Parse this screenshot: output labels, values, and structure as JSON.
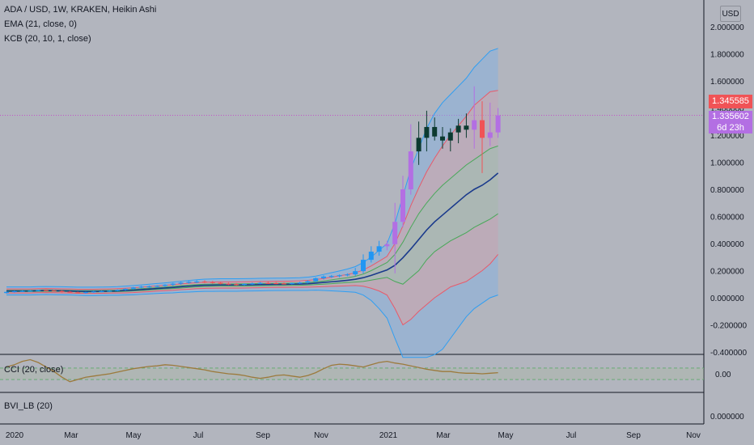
{
  "colors": {
    "background": "#b2b5be",
    "bull_candle": "#b36fe3",
    "bull_candle_early": "#2196f3",
    "bear_candle": "#0c3a30",
    "bear_candle_red": "#f05356",
    "ema_line": "#1a3a8c",
    "kc_upper_outer": "#2f9ef2",
    "kc_upper_inner": "#e85a6a",
    "kc_mid": "#4aa85a",
    "cci_line": "#9c7a3c",
    "grid": "#a4a7b0",
    "price_tag_red": "#f05356",
    "price_tag_purple": "#b36fe3"
  },
  "legend": {
    "symbol": "ADA / USD, 1W, KRAKEN, Heikin Ashi",
    "ema": "EMA (21, close, 0)",
    "kcb": "KCB (20, 10, 1, close)",
    "cci": "CCI (20, close)",
    "bvi": "BVI_LB (20)"
  },
  "currency_button": "USD",
  "price_tags": {
    "last": "1.345585",
    "close": "1.335602",
    "countdown": "6d 23h"
  },
  "chart_data": [
    {
      "type": "candlestick",
      "title": "ADA / USD, 1W, KRAKEN, Heikin Ashi",
      "yticks": [
        "2.000000",
        "1.800000",
        "1.600000",
        "1.400000",
        "1.200000",
        "1.000000",
        "0.800000",
        "0.600000",
        "0.400000",
        "0.200000",
        "0.000000",
        "-0.200000",
        "-0.400000"
      ],
      "ylim": [
        -0.42,
        2.12
      ],
      "x_tick_labels": [
        "2020",
        "Mar",
        "May",
        "Jul",
        "Sep",
        "Nov",
        "2021",
        "Mar",
        "May",
        "Jul",
        "Sep",
        "Nov"
      ],
      "grid": false,
      "series": [
        {
          "name": "Heikin Ashi",
          "ohlc": [
            [
              0.035,
              0.046,
              0.03,
              0.043
            ],
            [
              0.043,
              0.052,
              0.038,
              0.048
            ],
            [
              0.048,
              0.055,
              0.044,
              0.05
            ],
            [
              0.05,
              0.056,
              0.046,
              0.052
            ],
            [
              0.052,
              0.06,
              0.048,
              0.056
            ],
            [
              0.056,
              0.062,
              0.05,
              0.054
            ],
            [
              0.054,
              0.058,
              0.046,
              0.05
            ],
            [
              0.05,
              0.055,
              0.04,
              0.045
            ],
            [
              0.045,
              0.05,
              0.035,
              0.04
            ],
            [
              0.04,
              0.046,
              0.032,
              0.038
            ],
            [
              0.038,
              0.045,
              0.03,
              0.042
            ],
            [
              0.042,
              0.05,
              0.036,
              0.046
            ],
            [
              0.046,
              0.052,
              0.04,
              0.048
            ],
            [
              0.048,
              0.055,
              0.044,
              0.052
            ],
            [
              0.052,
              0.062,
              0.048,
              0.058
            ],
            [
              0.058,
              0.07,
              0.052,
              0.066
            ],
            [
              0.066,
              0.08,
              0.06,
              0.076
            ],
            [
              0.076,
              0.088,
              0.07,
              0.082
            ],
            [
              0.082,
              0.09,
              0.074,
              0.084
            ],
            [
              0.084,
              0.092,
              0.076,
              0.088
            ],
            [
              0.088,
              0.1,
              0.08,
              0.096
            ],
            [
              0.096,
              0.11,
              0.088,
              0.104
            ],
            [
              0.104,
              0.118,
              0.096,
              0.112
            ],
            [
              0.112,
              0.124,
              0.104,
              0.118
            ],
            [
              0.118,
              0.13,
              0.108,
              0.12
            ],
            [
              0.12,
              0.128,
              0.108,
              0.116
            ],
            [
              0.116,
              0.124,
              0.104,
              0.11
            ],
            [
              0.11,
              0.118,
              0.098,
              0.104
            ],
            [
              0.104,
              0.112,
              0.094,
              0.1
            ],
            [
              0.1,
              0.108,
              0.09,
              0.098
            ],
            [
              0.098,
              0.106,
              0.09,
              0.102
            ],
            [
              0.102,
              0.112,
              0.096,
              0.106
            ],
            [
              0.106,
              0.116,
              0.1,
              0.11
            ],
            [
              0.11,
              0.118,
              0.102,
              0.108
            ],
            [
              0.108,
              0.116,
              0.1,
              0.106
            ],
            [
              0.106,
              0.114,
              0.098,
              0.104
            ],
            [
              0.104,
              0.112,
              0.098,
              0.108
            ],
            [
              0.108,
              0.118,
              0.102,
              0.112
            ],
            [
              0.112,
              0.13,
              0.106,
              0.122
            ],
            [
              0.122,
              0.15,
              0.114,
              0.144
            ],
            [
              0.144,
              0.165,
              0.134,
              0.156
            ],
            [
              0.156,
              0.168,
              0.146,
              0.16
            ],
            [
              0.16,
              0.172,
              0.15,
              0.166
            ],
            [
              0.166,
              0.18,
              0.158,
              0.172
            ],
            [
              0.172,
              0.22,
              0.16,
              0.196
            ],
            [
              0.196,
              0.32,
              0.18,
              0.28
            ],
            [
              0.28,
              0.38,
              0.26,
              0.34
            ],
            [
              0.34,
              0.42,
              0.31,
              0.38
            ],
            [
              0.38,
              0.42,
              0.35,
              0.395
            ],
            [
              0.395,
              0.7,
              0.18,
              0.56
            ],
            [
              0.56,
              0.9,
              0.52,
              0.8
            ],
            [
              0.8,
              1.28,
              0.76,
              1.08
            ],
            [
              1.08,
              1.3,
              0.98,
              1.18
            ],
            [
              1.18,
              1.38,
              1.08,
              1.26
            ],
            [
              1.26,
              1.33,
              1.16,
              1.19
            ],
            [
              1.19,
              1.26,
              1.1,
              1.16
            ],
            [
              1.16,
              1.25,
              1.08,
              1.22
            ],
            [
              1.22,
              1.32,
              1.14,
              1.27
            ],
            [
              1.27,
              1.36,
              1.18,
              1.24
            ],
            [
              1.24,
              1.56,
              1.1,
              1.31
            ],
            [
              1.31,
              1.45,
              0.92,
              1.18
            ],
            [
              1.18,
              1.44,
              1.12,
              1.22
            ],
            [
              1.22,
              1.4,
              1.18,
              1.346
            ]
          ]
        },
        {
          "name": "EMA (21, close, 0)",
          "values": [
            0.05,
            0.05,
            0.05,
            0.05,
            0.052,
            0.053,
            0.052,
            0.051,
            0.05,
            0.048,
            0.047,
            0.047,
            0.048,
            0.049,
            0.05,
            0.053,
            0.056,
            0.06,
            0.064,
            0.068,
            0.072,
            0.076,
            0.081,
            0.085,
            0.089,
            0.092,
            0.093,
            0.094,
            0.094,
            0.094,
            0.095,
            0.096,
            0.097,
            0.098,
            0.099,
            0.099,
            0.1,
            0.101,
            0.103,
            0.108,
            0.113,
            0.118,
            0.123,
            0.129,
            0.136,
            0.148,
            0.165,
            0.185,
            0.205,
            0.24,
            0.295,
            0.36,
            0.43,
            0.5,
            0.56,
            0.61,
            0.66,
            0.71,
            0.76,
            0.8,
            0.83,
            0.87,
            0.92
          ]
        },
        {
          "name": "KC outer upper",
          "values": [
            0.08,
            0.08,
            0.08,
            0.08,
            0.082,
            0.083,
            0.082,
            0.081,
            0.08,
            0.078,
            0.078,
            0.078,
            0.079,
            0.08,
            0.082,
            0.086,
            0.09,
            0.095,
            0.1,
            0.105,
            0.11,
            0.116,
            0.122,
            0.128,
            0.133,
            0.137,
            0.139,
            0.14,
            0.14,
            0.14,
            0.141,
            0.142,
            0.143,
            0.144,
            0.145,
            0.145,
            0.146,
            0.148,
            0.152,
            0.16,
            0.172,
            0.185,
            0.198,
            0.212,
            0.23,
            0.26,
            0.3,
            0.35,
            0.4,
            0.55,
            0.75,
            0.95,
            1.1,
            1.25,
            1.36,
            1.44,
            1.5,
            1.56,
            1.62,
            1.7,
            1.76,
            1.82,
            1.84
          ]
        },
        {
          "name": "KC inner upper",
          "values": [
            0.065,
            0.065,
            0.065,
            0.065,
            0.067,
            0.068,
            0.067,
            0.066,
            0.065,
            0.063,
            0.063,
            0.063,
            0.064,
            0.065,
            0.067,
            0.07,
            0.074,
            0.078,
            0.083,
            0.087,
            0.092,
            0.097,
            0.102,
            0.107,
            0.111,
            0.115,
            0.116,
            0.117,
            0.117,
            0.117,
            0.118,
            0.119,
            0.12,
            0.121,
            0.122,
            0.122,
            0.123,
            0.125,
            0.128,
            0.134,
            0.142,
            0.152,
            0.162,
            0.172,
            0.184,
            0.205,
            0.235,
            0.27,
            0.305,
            0.4,
            0.53,
            0.68,
            0.81,
            0.93,
            1.03,
            1.12,
            1.2,
            1.27,
            1.34,
            1.42,
            1.47,
            1.52,
            1.53
          ]
        },
        {
          "name": "KC mid upper",
          "values": [
            0.055,
            0.055,
            0.055,
            0.055,
            0.057,
            0.058,
            0.057,
            0.056,
            0.055,
            0.053,
            0.053,
            0.053,
            0.054,
            0.055,
            0.057,
            0.06,
            0.063,
            0.067,
            0.071,
            0.075,
            0.079,
            0.084,
            0.089,
            0.093,
            0.097,
            0.1,
            0.101,
            0.102,
            0.102,
            0.102,
            0.103,
            0.104,
            0.105,
            0.106,
            0.107,
            0.107,
            0.108,
            0.109,
            0.112,
            0.118,
            0.124,
            0.132,
            0.14,
            0.148,
            0.158,
            0.175,
            0.2,
            0.23,
            0.26,
            0.32,
            0.41,
            0.52,
            0.62,
            0.7,
            0.77,
            0.83,
            0.88,
            0.93,
            0.98,
            1.02,
            1.06,
            1.1,
            1.12
          ]
        },
        {
          "name": "KC mid lower",
          "values": [
            0.045,
            0.045,
            0.045,
            0.045,
            0.047,
            0.048,
            0.047,
            0.046,
            0.045,
            0.043,
            0.042,
            0.042,
            0.043,
            0.044,
            0.045,
            0.047,
            0.05,
            0.053,
            0.057,
            0.061,
            0.065,
            0.068,
            0.072,
            0.076,
            0.08,
            0.083,
            0.084,
            0.085,
            0.085,
            0.085,
            0.086,
            0.087,
            0.088,
            0.089,
            0.09,
            0.09,
            0.091,
            0.092,
            0.094,
            0.097,
            0.1,
            0.104,
            0.108,
            0.112,
            0.116,
            0.12,
            0.13,
            0.14,
            0.15,
            0.12,
            0.1,
            0.15,
            0.2,
            0.28,
            0.34,
            0.38,
            0.42,
            0.45,
            0.48,
            0.52,
            0.55,
            0.58,
            0.62
          ]
        },
        {
          "name": "KC inner lower",
          "values": [
            0.035,
            0.035,
            0.035,
            0.035,
            0.037,
            0.038,
            0.037,
            0.036,
            0.035,
            0.033,
            0.032,
            0.032,
            0.033,
            0.034,
            0.035,
            0.036,
            0.038,
            0.042,
            0.045,
            0.049,
            0.052,
            0.055,
            0.06,
            0.063,
            0.067,
            0.069,
            0.07,
            0.071,
            0.071,
            0.071,
            0.072,
            0.073,
            0.074,
            0.075,
            0.076,
            0.076,
            0.077,
            0.077,
            0.078,
            0.08,
            0.082,
            0.084,
            0.086,
            0.088,
            0.09,
            0.085,
            0.07,
            0.05,
            0.02,
            -0.08,
            -0.2,
            -0.16,
            -0.1,
            -0.05,
            0.0,
            0.04,
            0.08,
            0.1,
            0.12,
            0.16,
            0.2,
            0.25,
            0.32
          ]
        },
        {
          "name": "KC outer lower",
          "values": [
            0.02,
            0.02,
            0.02,
            0.02,
            0.022,
            0.023,
            0.022,
            0.021,
            0.02,
            0.018,
            0.016,
            0.016,
            0.017,
            0.018,
            0.018,
            0.02,
            0.022,
            0.025,
            0.028,
            0.031,
            0.034,
            0.036,
            0.04,
            0.042,
            0.045,
            0.047,
            0.047,
            0.048,
            0.048,
            0.048,
            0.049,
            0.05,
            0.051,
            0.052,
            0.053,
            0.053,
            0.054,
            0.054,
            0.054,
            0.056,
            0.054,
            0.051,
            0.048,
            0.044,
            0.04,
            0.02,
            -0.02,
            -0.08,
            -0.15,
            -0.3,
            -0.44,
            -0.44,
            -0.44,
            -0.44,
            -0.42,
            -0.38,
            -0.3,
            -0.22,
            -0.14,
            -0.08,
            -0.04,
            0.0,
            0.02
          ]
        }
      ]
    },
    {
      "type": "line",
      "title": "CCI (20, close)",
      "yticks": [
        "0.00"
      ],
      "series": [
        {
          "name": "CCI",
          "values": [
            120,
            160,
            220,
            250,
            200,
            120,
            40,
            -60,
            -140,
            -100,
            -60,
            -40,
            -20,
            0,
            30,
            60,
            90,
            110,
            130,
            140,
            160,
            150,
            130,
            110,
            90,
            70,
            40,
            20,
            0,
            -10,
            -30,
            -60,
            -80,
            -60,
            -30,
            -20,
            -40,
            -60,
            -30,
            20,
            90,
            150,
            170,
            160,
            140,
            120,
            160,
            200,
            220,
            190,
            170,
            140,
            110,
            80,
            60,
            40,
            40,
            20,
            10,
            10,
            0,
            10,
            20
          ]
        }
      ]
    },
    {
      "type": "line",
      "title": "BVI_LB (20)",
      "yticks": [
        "0.000000"
      ],
      "series": []
    }
  ]
}
